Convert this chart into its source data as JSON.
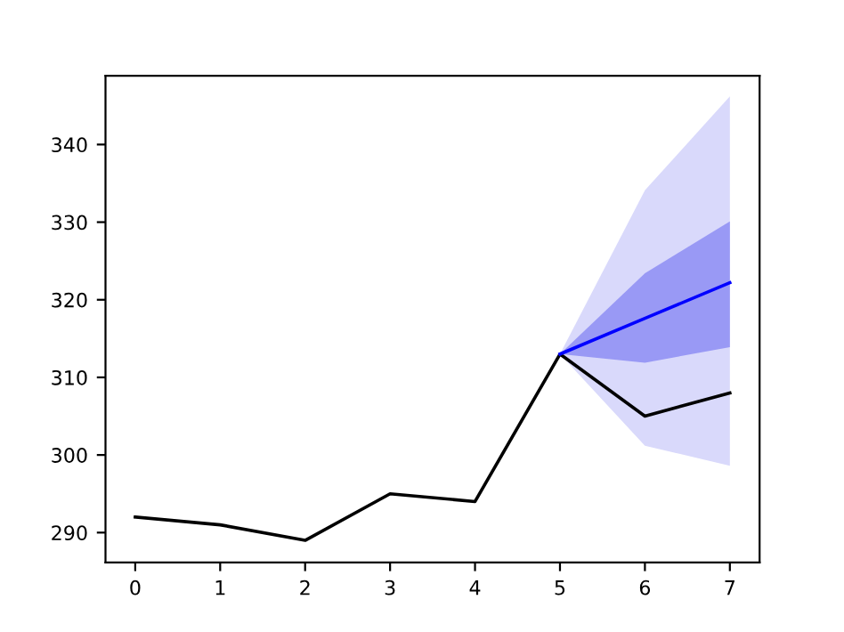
{
  "chart_data": {
    "type": "line",
    "xlim": [
      -0.35,
      7.35
    ],
    "ylim": [
      286.15,
      348.85
    ],
    "xticks": [
      0,
      1,
      2,
      3,
      4,
      5,
      6,
      7
    ],
    "yticks": [
      290,
      300,
      310,
      320,
      330,
      340
    ],
    "grid": false,
    "legend": false,
    "series": [
      {
        "color": "#d9d9fb",
        "x": [
          5,
          6,
          7
        ],
        "values": [
          null,
          null,
          null
        ],
        "lower": [
          313,
          301.2,
          298.6
        ],
        "upper": [
          313,
          334.1,
          346.2
        ]
      },
      {
        "color": "#9999f5",
        "x": [
          5,
          6,
          7
        ],
        "values": [
          null,
          null,
          null
        ],
        "lower": [
          313,
          311.9,
          313.9
        ],
        "upper": [
          313,
          323.4,
          330.1
        ]
      },
      {
        "color": "#000000",
        "x": [
          0,
          1,
          2,
          3,
          4,
          5,
          6,
          7
        ],
        "values": [
          292,
          291,
          289,
          295,
          294,
          313,
          305,
          308
        ]
      },
      {
        "color": "#0000ff",
        "x": [
          5,
          6,
          7
        ],
        "values": [
          313,
          317.6,
          322.2
        ]
      }
    ]
  }
}
